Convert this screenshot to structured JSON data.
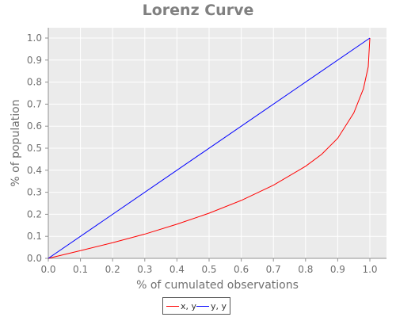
{
  "chart_data": {
    "type": "line",
    "title": "Lorenz Curve",
    "xlabel": "% of cumulated observations",
    "ylabel": "% of population",
    "xlim": [
      0.0,
      1.0
    ],
    "ylim": [
      0.0,
      1.0
    ],
    "xticks": [
      "0.0",
      "0.1",
      "0.2",
      "0.3",
      "0.4",
      "0.5",
      "0.6",
      "0.7",
      "0.8",
      "0.9",
      "1.0"
    ],
    "yticks": [
      "0.0",
      "0.1",
      "0.2",
      "0.3",
      "0.4",
      "0.5",
      "0.6",
      "0.7",
      "0.8",
      "0.9",
      "1.0"
    ],
    "grid": true,
    "legend_position": "bottom",
    "series": [
      {
        "name": "x, y",
        "color": "#ff0000",
        "points": [
          [
            0.0,
            0.0
          ],
          [
            0.1,
            0.035
          ],
          [
            0.2,
            0.071
          ],
          [
            0.3,
            0.11
          ],
          [
            0.4,
            0.155
          ],
          [
            0.5,
            0.205
          ],
          [
            0.6,
            0.263
          ],
          [
            0.7,
            0.332
          ],
          [
            0.8,
            0.418
          ],
          [
            0.85,
            0.472
          ],
          [
            0.9,
            0.545
          ],
          [
            0.95,
            0.66
          ],
          [
            0.98,
            0.77
          ],
          [
            0.995,
            0.87
          ],
          [
            1.0,
            1.0
          ]
        ]
      },
      {
        "name": "y, y",
        "color": "#0000ff",
        "points": [
          [
            0.0,
            0.0
          ],
          [
            1.0,
            1.0
          ]
        ]
      }
    ]
  }
}
